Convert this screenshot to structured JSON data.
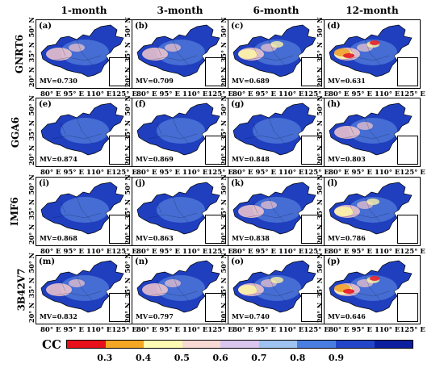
{
  "columns": [
    "1-month",
    "3-month",
    "6-month",
    "12-month"
  ],
  "rows": [
    "GNRT6",
    "GGA6",
    "IMF6",
    "3B42V7"
  ],
  "y_ticks": [
    "20° N",
    "35° N",
    "50° N"
  ],
  "x_ticks": "80° E  95° E 110° E125° E",
  "panels": [
    {
      "label": "(a)",
      "mv": "MV=0.730"
    },
    {
      "label": "(b)",
      "mv": "MV=0.709"
    },
    {
      "label": "(c)",
      "mv": "MV=0.689"
    },
    {
      "label": "(d)",
      "mv": "MV=0.631"
    },
    {
      "label": "(e)",
      "mv": "MV=0.874"
    },
    {
      "label": "(f)",
      "mv": "MV=0.869"
    },
    {
      "label": "(g)",
      "mv": "MV=0.848"
    },
    {
      "label": "(h)",
      "mv": "MV=0.803"
    },
    {
      "label": "(i)",
      "mv": "MV=0.868"
    },
    {
      "label": "(j)",
      "mv": "MV=0.863"
    },
    {
      "label": "(k)",
      "mv": "MV=0.838"
    },
    {
      "label": "(l)",
      "mv": "MV=0.786"
    },
    {
      "label": "(m)",
      "mv": "MV=0.832"
    },
    {
      "label": "(n)",
      "mv": "MV=0.797"
    },
    {
      "label": "(o)",
      "mv": "MV=0.740"
    },
    {
      "label": "(p)",
      "mv": "MV=0.646"
    }
  ],
  "colorbar": {
    "label": "CC",
    "ticks": [
      "0.3",
      "0.4",
      "0.5",
      "0.6",
      "0.7",
      "0.8",
      "0.9"
    ],
    "colors": [
      "#e8101a",
      "#f5a623",
      "#fdfbb3",
      "#f9d9d3",
      "#d9c6ee",
      "#9fc3f0",
      "#4a7de0",
      "#2346c8",
      "#0c1f9e"
    ]
  },
  "panel_colors": {
    "base_blue": "#1f3fbf",
    "light_blue": "#6b9be8",
    "pink": "#f3c8cc",
    "yellow": "#fdf3a8",
    "orange": "#f0a030",
    "red": "#e8202a"
  }
}
